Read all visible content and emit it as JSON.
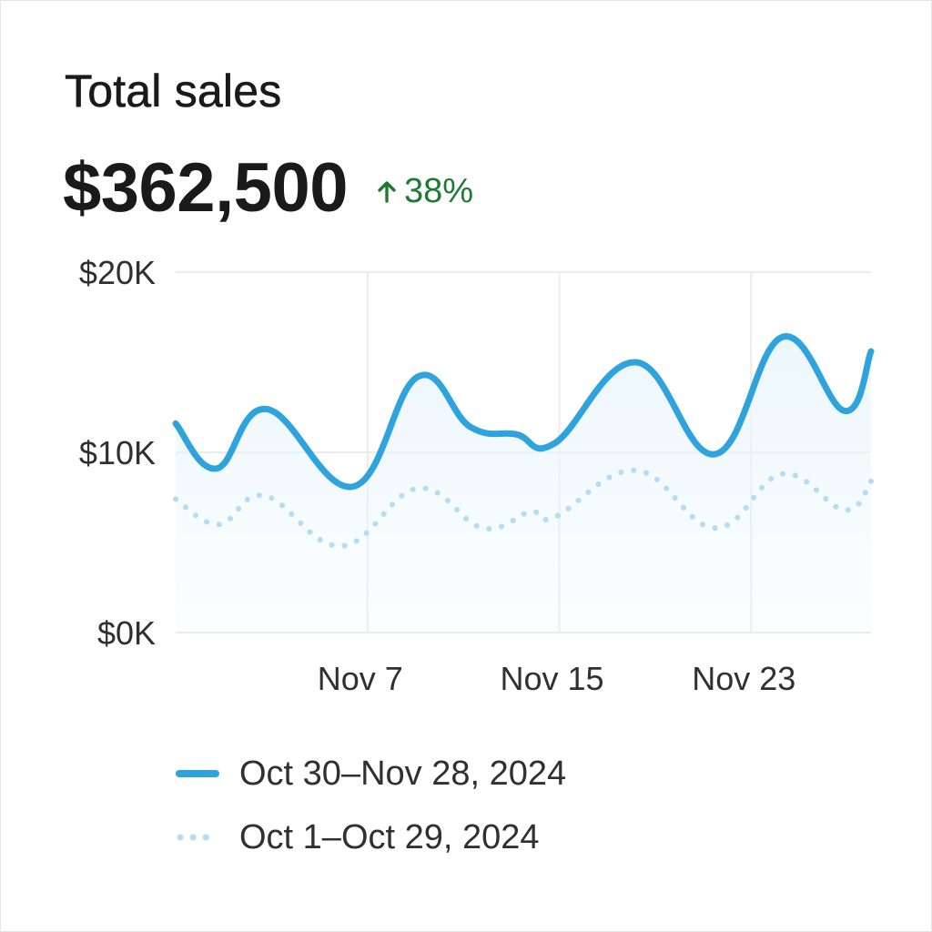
{
  "card": {
    "title": "Total sales",
    "total": "$362,500",
    "change": "38%",
    "change_icon": "arrow-up-icon",
    "change_color": "#1f7a35"
  },
  "colors": {
    "current": "#2fa3dc",
    "previous": "#b5dcf0",
    "fill": "#eaf6fc",
    "grid": "#e8ecef"
  },
  "chart_data": {
    "type": "line",
    "title": "Total sales",
    "ylim": [
      0,
      20000
    ],
    "yticks": [
      {
        "value": 0,
        "label": "$0K"
      },
      {
        "value": 10000,
        "label": "$10K"
      },
      {
        "value": 20000,
        "label": "$20K"
      }
    ],
    "xlim": [
      0,
      29
    ],
    "xticks": [
      {
        "value": 8,
        "label": "Nov 7"
      },
      {
        "value": 16,
        "label": "Nov 15"
      },
      {
        "value": 24,
        "label": "Nov 23"
      }
    ],
    "grid": true,
    "legend_position": "bottom",
    "series": [
      {
        "name": "Oct 30–Nov 28, 2024",
        "style": "solid",
        "x": [
          0,
          1.7,
          3.8,
          7.4,
          10.1,
          12.3,
          14.2,
          15.8,
          19.2,
          22.5,
          25.3,
          27.9,
          29
        ],
        "values": [
          11600,
          9100,
          12400,
          8100,
          14200,
          11400,
          11000,
          10500,
          15000,
          9900,
          16400,
          12300,
          15600
        ]
      },
      {
        "name": "Oct 1–Oct 29, 2024",
        "style": "dotted",
        "x": [
          0,
          1.8,
          3.7,
          6.9,
          10.1,
          12.8,
          14.8,
          15.8,
          19.2,
          22.5,
          25.3,
          27.9,
          29
        ],
        "values": [
          7400,
          6000,
          7600,
          4800,
          8000,
          5800,
          6700,
          6400,
          9000,
          5800,
          8800,
          6800,
          8400
        ]
      }
    ]
  }
}
